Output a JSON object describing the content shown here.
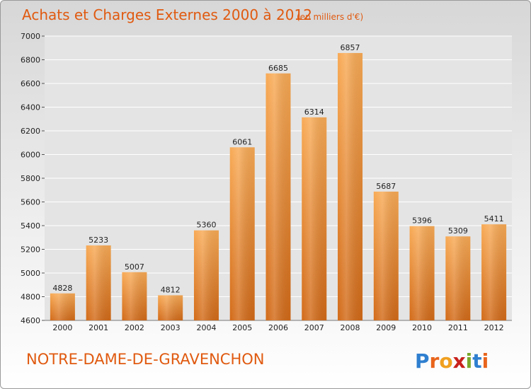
{
  "page": {
    "title": "Achats et Charges Externes 2000 à 2012",
    "unit": "(en milliers d'€)",
    "town": "NOTRE-DAME-DE-GRAVENCHON",
    "logo_text": "Proxiti"
  },
  "colors": {
    "title": "#e05a10",
    "bar_light": "#f8aa55",
    "bar_dark": "#d26a18",
    "grid": "#ffffff",
    "plot_bg": "#e4e4e4"
  },
  "chart_data": {
    "type": "bar",
    "title": "Achats et Charges Externes 2000 à 2012",
    "subtitle": "(en milliers d'€)",
    "categories": [
      "2000",
      "2001",
      "2002",
      "2003",
      "2004",
      "2005",
      "2006",
      "2007",
      "2008",
      "2009",
      "2010",
      "2011",
      "2012"
    ],
    "values": [
      4828,
      5233,
      5007,
      4812,
      5360,
      6061,
      6685,
      6314,
      6857,
      5687,
      5396,
      5309,
      5411
    ],
    "ylim": [
      4600,
      7000
    ],
    "yticks": [
      4600,
      4800,
      5000,
      5200,
      5400,
      5600,
      5800,
      6000,
      6200,
      6400,
      6600,
      6800,
      7000
    ],
    "grid": true,
    "xlabel": "",
    "ylabel": ""
  }
}
